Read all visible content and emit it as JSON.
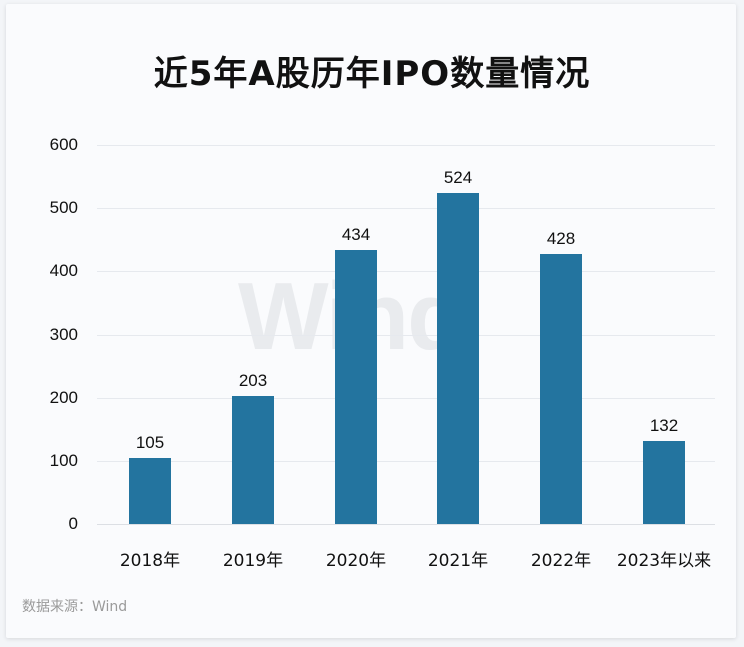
{
  "chart_data": {
    "type": "bar",
    "title": "近5年A股历年IPO数量情况",
    "categories": [
      "2018年",
      "2019年",
      "2020年",
      "2021年",
      "2022年",
      "2023年以来"
    ],
    "values": [
      105,
      203,
      434,
      524,
      428,
      132
    ],
    "xlabel": "",
    "ylabel": "",
    "ylim": [
      0,
      600
    ],
    "yticks": [
      0,
      100,
      200,
      300,
      400,
      500,
      600
    ],
    "grid": true,
    "legend": null,
    "data_labels": true,
    "bar_color": "#23749f"
  },
  "watermark": "Wind",
  "source": "数据来源：Wind"
}
